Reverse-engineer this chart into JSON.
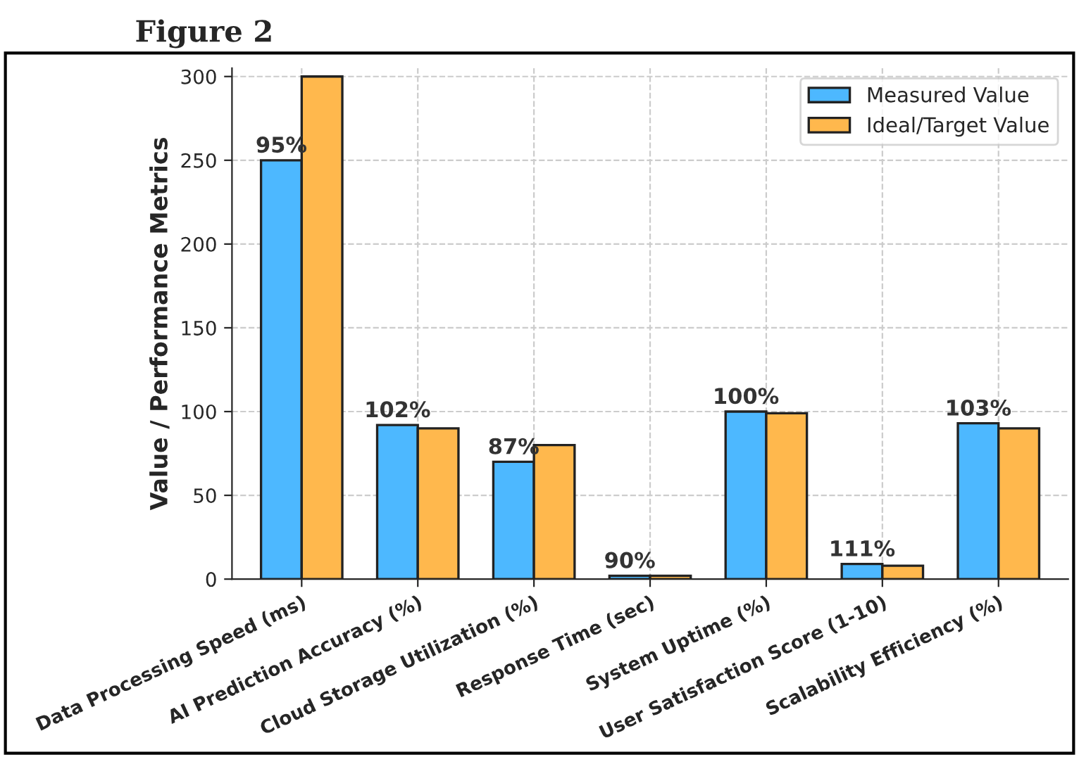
{
  "chart_data": {
    "type": "bar",
    "title": "Figure 2",
    "ylabel": "Value / Performance Metrics",
    "categories": [
      "Data Processing Speed (ms)",
      "AI Prediction Accuracy (%)",
      "Cloud Storage Utilization (%)",
      "Response Time (sec)",
      "System Uptime (%)",
      "User Satisfaction Score (1-10)",
      "Scalability Efficiency (%)"
    ],
    "series": [
      {
        "name": "Measured Value",
        "color": "#4db8ff",
        "values": [
          250,
          92,
          70,
          2,
          100,
          9,
          93
        ]
      },
      {
        "name": "Ideal/Target Value",
        "color": "#ffb84d",
        "values": [
          300,
          90,
          80,
          2,
          99,
          8,
          90
        ]
      }
    ],
    "annotations": [
      {
        "text": "95%",
        "x": "Data Processing Speed (ms)",
        "y": 250
      },
      {
        "text": "102%",
        "x": "AI Prediction Accuracy (%)",
        "y": 92
      },
      {
        "text": "87%",
        "x": "Cloud Storage Utilization (%)",
        "y": 70
      },
      {
        "text": "90%",
        "x": "Response Time (sec)",
        "y": 2
      },
      {
        "text": "100%",
        "x": "System Uptime (%)",
        "y": 100
      },
      {
        "text": "111%",
        "x": "User Satisfaction Score (1-10)",
        "y": 9
      },
      {
        "text": "103%",
        "x": "Scalability Efficiency (%)",
        "y": 93
      }
    ],
    "ylim": [
      0,
      305
    ],
    "yticks": [
      0,
      50,
      100,
      150,
      200,
      250,
      300
    ],
    "grid": true,
    "legend": "top right"
  }
}
